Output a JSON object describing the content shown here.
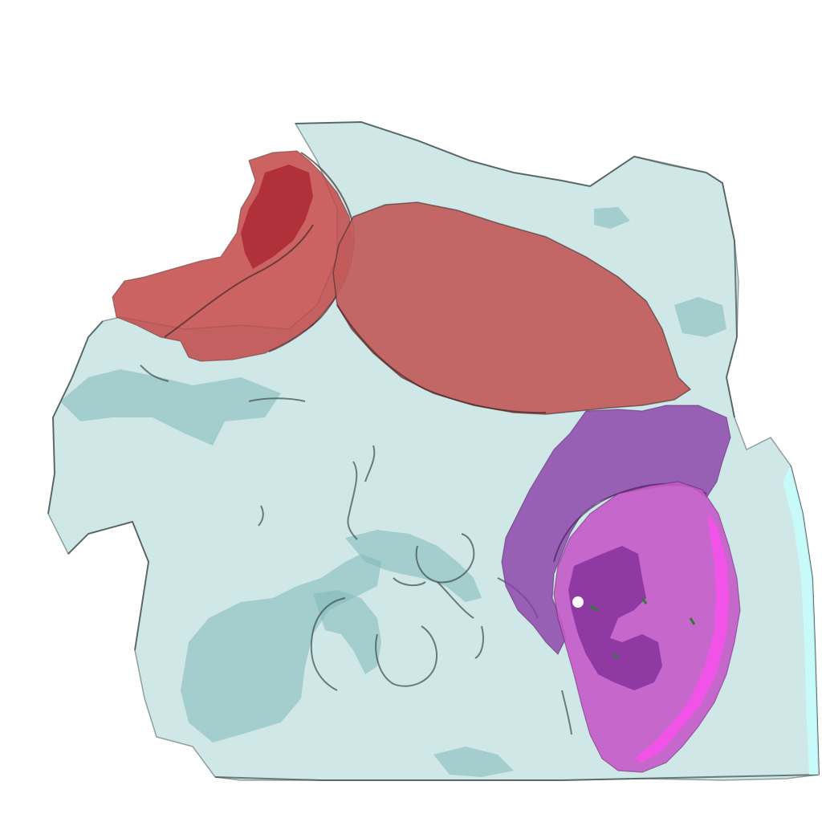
{
  "scene": {
    "background_color": "#ffffff",
    "meshes": [
      {
        "id": "tissue-volume",
        "color": "#a9d3d3",
        "shadow_color": "#7fb8ba",
        "edge_color": "#3c4b4b"
      },
      {
        "id": "red-segment-upper-left",
        "color": "#c24848",
        "dark_color": "#a51d2b"
      },
      {
        "id": "red-segment-upper-center",
        "color": "#c05c5a"
      },
      {
        "id": "purple-segment-outer",
        "color": "#8a3ea8"
      },
      {
        "id": "magenta-segment-inner",
        "color": "#c45ac8",
        "highlight_color": "#ff4cf2",
        "dark_color": "#6b1a88"
      }
    ]
  }
}
